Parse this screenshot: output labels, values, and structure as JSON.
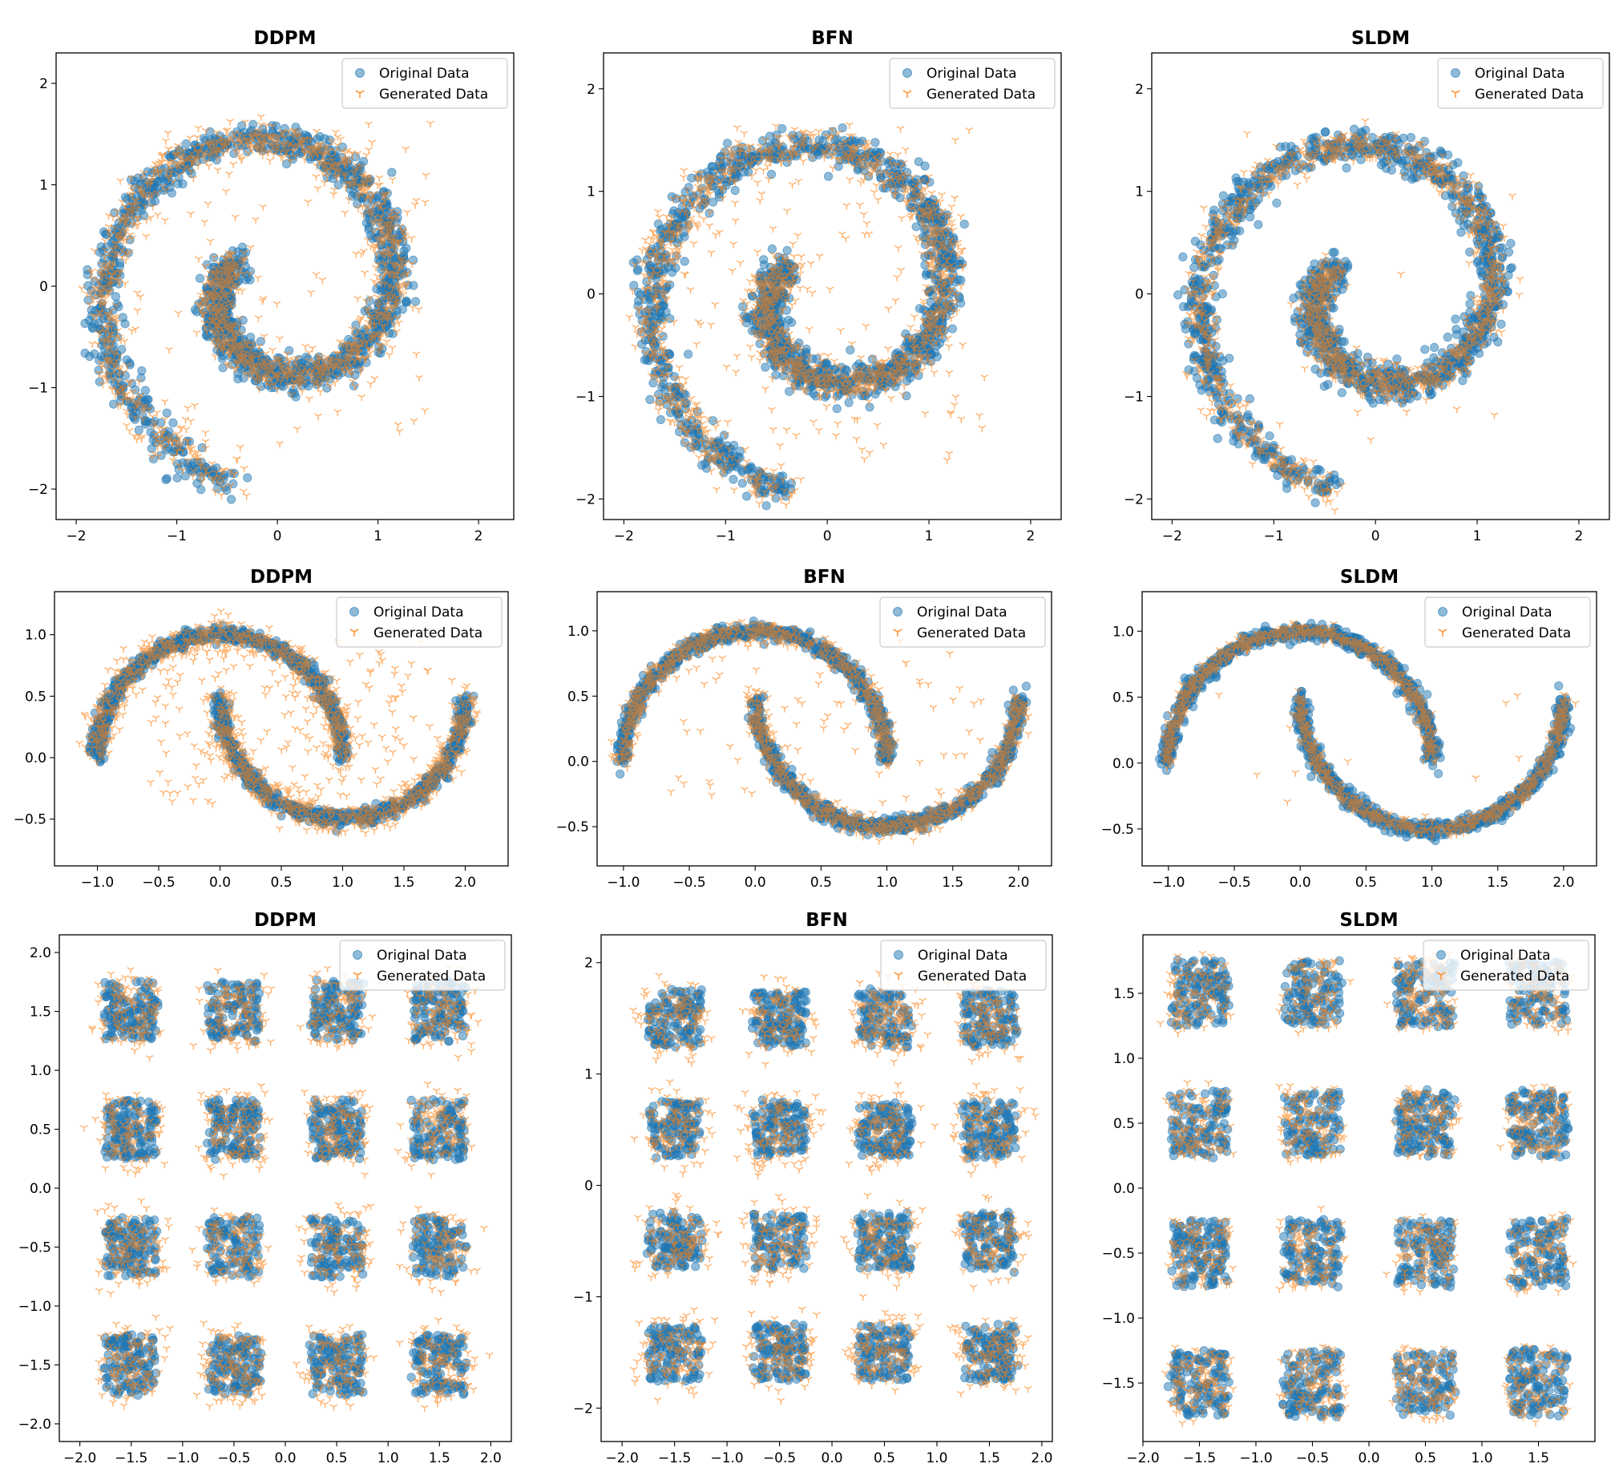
{
  "figure": {
    "legend_labels": {
      "original": "Original Data",
      "generated": "Generated Data"
    },
    "colors": {
      "original": "#1f77b4",
      "generated": "#ff7f0e"
    }
  },
  "chart_data": [
    {
      "type": "scatter",
      "dataset": "swiss-roll",
      "title": "DDPM",
      "model": "DDPM",
      "xlim": [
        -2.2,
        2.35
      ],
      "ylim": [
        -2.3,
        2.3
      ],
      "xticks": [
        -2,
        -1,
        0,
        1,
        2
      ],
      "yticks": [
        -2,
        -1,
        0,
        1,
        2
      ],
      "xtick_labels": [
        "−2",
        "−1",
        "0",
        "1",
        "2"
      ],
      "ytick_labels": [
        "−2",
        "−1",
        "0",
        "1",
        "2"
      ],
      "legend": "top-right",
      "grid": false,
      "scatter_level": 0.13,
      "series": [
        {
          "name": "Original Data",
          "marker": "circle",
          "color": "#1f77b4",
          "alpha": 0.5
        },
        {
          "name": "Generated Data",
          "marker": "tri_down",
          "color": "#ff7f0e",
          "alpha": 0.6
        }
      ]
    },
    {
      "type": "scatter",
      "dataset": "swiss-roll",
      "title": "BFN",
      "model": "BFN",
      "xlim": [
        -2.2,
        2.3
      ],
      "ylim": [
        -2.2,
        2.35
      ],
      "xticks": [
        -2,
        -1,
        0,
        1,
        2
      ],
      "yticks": [
        -2,
        -1,
        0,
        1,
        2
      ],
      "xtick_labels": [
        "−2",
        "−1",
        "0",
        "1",
        "2"
      ],
      "ytick_labels": [
        "−2",
        "−1",
        "0",
        "1",
        "2"
      ],
      "legend": "top-right",
      "grid": false,
      "scatter_level": 0.17,
      "series": [
        {
          "name": "Original Data",
          "marker": "circle",
          "color": "#1f77b4",
          "alpha": 0.5
        },
        {
          "name": "Generated Data",
          "marker": "tri_down",
          "color": "#ff7f0e",
          "alpha": 0.6
        }
      ]
    },
    {
      "type": "scatter",
      "dataset": "swiss-roll",
      "title": "SLDM",
      "model": "SLDM",
      "xlim": [
        -2.2,
        2.3
      ],
      "ylim": [
        -2.2,
        2.35
      ],
      "xticks": [
        -2,
        -1,
        0,
        1,
        2
      ],
      "yticks": [
        -2,
        -1,
        0,
        1,
        2
      ],
      "xtick_labels": [
        "−2",
        "−1",
        "0",
        "1",
        "2"
      ],
      "ytick_labels": [
        "−2",
        "−1",
        "0",
        "1",
        "2"
      ],
      "legend": "top-right",
      "grid": false,
      "scatter_level": 0.02,
      "series": [
        {
          "name": "Original Data",
          "marker": "circle",
          "color": "#1f77b4",
          "alpha": 0.5
        },
        {
          "name": "Generated Data",
          "marker": "tri_down",
          "color": "#ff7f0e",
          "alpha": 0.6
        }
      ]
    },
    {
      "type": "scatter",
      "dataset": "two-moons",
      "title": "DDPM",
      "model": "DDPM",
      "xlim": [
        -1.35,
        2.35
      ],
      "ylim": [
        -0.88,
        1.35
      ],
      "xticks": [
        -1.0,
        -0.5,
        0.0,
        0.5,
        1.0,
        1.5,
        2.0
      ],
      "yticks": [
        -0.5,
        0.0,
        0.5,
        1.0
      ],
      "xtick_labels": [
        "−1.0",
        "−0.5",
        "0.0",
        "0.5",
        "1.0",
        "1.5",
        "2.0"
      ],
      "ytick_labels": [
        "−0.5",
        "0.0",
        "0.5",
        "1.0"
      ],
      "legend": "top-right",
      "grid": false,
      "scatter_level": 0.28,
      "series": [
        {
          "name": "Original Data",
          "marker": "circle",
          "color": "#1f77b4",
          "alpha": 0.5
        },
        {
          "name": "Generated Data",
          "marker": "tri_down",
          "color": "#ff7f0e",
          "alpha": 0.6
        }
      ]
    },
    {
      "type": "scatter",
      "dataset": "two-moons",
      "title": "BFN",
      "model": "BFN",
      "xlim": [
        -1.2,
        2.25
      ],
      "ylim": [
        -0.8,
        1.3
      ],
      "xticks": [
        -1.0,
        -0.5,
        0.0,
        0.5,
        1.0,
        1.5,
        2.0
      ],
      "yticks": [
        -0.5,
        0.0,
        0.5,
        1.0
      ],
      "xtick_labels": [
        "−1.0",
        "−0.5",
        "0.0",
        "0.5",
        "1.0",
        "1.5",
        "2.0"
      ],
      "ytick_labels": [
        "−0.5",
        "0.0",
        "0.5",
        "1.0"
      ],
      "legend": "top-right",
      "grid": false,
      "scatter_level": 0.12,
      "series": [
        {
          "name": "Original Data",
          "marker": "circle",
          "color": "#1f77b4",
          "alpha": 0.5
        },
        {
          "name": "Generated Data",
          "marker": "tri_down",
          "color": "#ff7f0e",
          "alpha": 0.6
        }
      ]
    },
    {
      "type": "scatter",
      "dataset": "two-moons",
      "title": "SLDM",
      "model": "SLDM",
      "xlim": [
        -1.2,
        2.25
      ],
      "ylim": [
        -0.78,
        1.3
      ],
      "xticks": [
        -1.0,
        -0.5,
        0.0,
        0.5,
        1.0,
        1.5,
        2.0
      ],
      "yticks": [
        -0.5,
        0.0,
        0.5,
        1.0
      ],
      "xtick_labels": [
        "−1.0",
        "−0.5",
        "0.0",
        "0.5",
        "1.0",
        "1.5",
        "2.0"
      ],
      "ytick_labels": [
        "−0.5",
        "0.0",
        "0.5",
        "1.0"
      ],
      "legend": "top-right",
      "grid": false,
      "scatter_level": 0.02,
      "series": [
        {
          "name": "Original Data",
          "marker": "circle",
          "color": "#1f77b4",
          "alpha": 0.5
        },
        {
          "name": "Generated Data",
          "marker": "tri_down",
          "color": "#ff7f0e",
          "alpha": 0.6
        }
      ]
    },
    {
      "type": "scatter",
      "dataset": "checkerboard-grid",
      "title": "DDPM",
      "model": "DDPM",
      "xlim": [
        -2.2,
        2.2
      ],
      "ylim": [
        -2.15,
        2.15
      ],
      "xticks": [
        -2.0,
        -1.5,
        -1.0,
        -0.5,
        0.0,
        0.5,
        1.0,
        1.5,
        2.0
      ],
      "yticks": [
        -2.0,
        -1.5,
        -1.0,
        -0.5,
        0.0,
        0.5,
        1.0,
        1.5,
        2.0
      ],
      "xtick_labels": [
        "−2.0",
        "−1.5",
        "−1.0",
        "−0.5",
        "0.0",
        "0.5",
        "1.0",
        "1.5",
        "2.0"
      ],
      "ytick_labels": [
        "−2.0",
        "−1.5",
        "−1.0",
        "−0.5",
        "0.0",
        "0.5",
        "1.0",
        "1.5",
        "2.0"
      ],
      "legend": "top-right",
      "grid": false,
      "scatter_level": 0.5,
      "series": [
        {
          "name": "Original Data",
          "marker": "circle",
          "color": "#1f77b4",
          "alpha": 0.5
        },
        {
          "name": "Generated Data",
          "marker": "tri_down",
          "color": "#ff7f0e",
          "alpha": 0.6
        }
      ]
    },
    {
      "type": "scatter",
      "dataset": "checkerboard-grid",
      "title": "BFN",
      "model": "BFN",
      "xlim": [
        -2.2,
        2.1
      ],
      "ylim": [
        -2.3,
        2.25
      ],
      "xticks": [
        -2.0,
        -1.5,
        -1.0,
        -0.5,
        0.0,
        0.5,
        1.0,
        1.5,
        2.0
      ],
      "yticks": [
        -2,
        -1,
        0,
        1,
        2
      ],
      "xtick_labels": [
        "−2.0",
        "−1.5",
        "−1.0",
        "−0.5",
        "0.0",
        "0.5",
        "1.0",
        "1.5",
        "2.0"
      ],
      "ytick_labels": [
        "−2",
        "−1",
        "0",
        "1",
        "2"
      ],
      "legend": "top-right",
      "grid": false,
      "scatter_level": 0.55,
      "series": [
        {
          "name": "Original Data",
          "marker": "circle",
          "color": "#1f77b4",
          "alpha": 0.5
        },
        {
          "name": "Generated Data",
          "marker": "tri_down",
          "color": "#ff7f0e",
          "alpha": 0.6
        }
      ]
    },
    {
      "type": "scatter",
      "dataset": "checkerboard-grid",
      "title": "SLDM",
      "model": "SLDM",
      "xlim": [
        -2.0,
        2.0
      ],
      "ylim": [
        -1.95,
        1.95
      ],
      "xticks": [
        -2.0,
        -1.5,
        -1.0,
        -0.5,
        0.0,
        0.5,
        1.0,
        1.5
      ],
      "yticks": [
        -1.5,
        -1.0,
        -0.5,
        0.0,
        0.5,
        1.0,
        1.5
      ],
      "xtick_labels": [
        "−2.0",
        "−1.5",
        "−1.0",
        "−0.5",
        "0.0",
        "0.5",
        "1.0",
        "1.5"
      ],
      "ytick_labels": [
        "−1.5",
        "−1.0",
        "−0.5",
        "0.0",
        "0.5",
        "1.0",
        "1.5"
      ],
      "legend": "top-right",
      "grid": false,
      "scatter_level": 0.15,
      "series": [
        {
          "name": "Original Data",
          "marker": "circle",
          "color": "#1f77b4",
          "alpha": 0.5
        },
        {
          "name": "Generated Data",
          "marker": "tri_down",
          "color": "#ff7f0e",
          "alpha": 0.6
        }
      ]
    }
  ]
}
